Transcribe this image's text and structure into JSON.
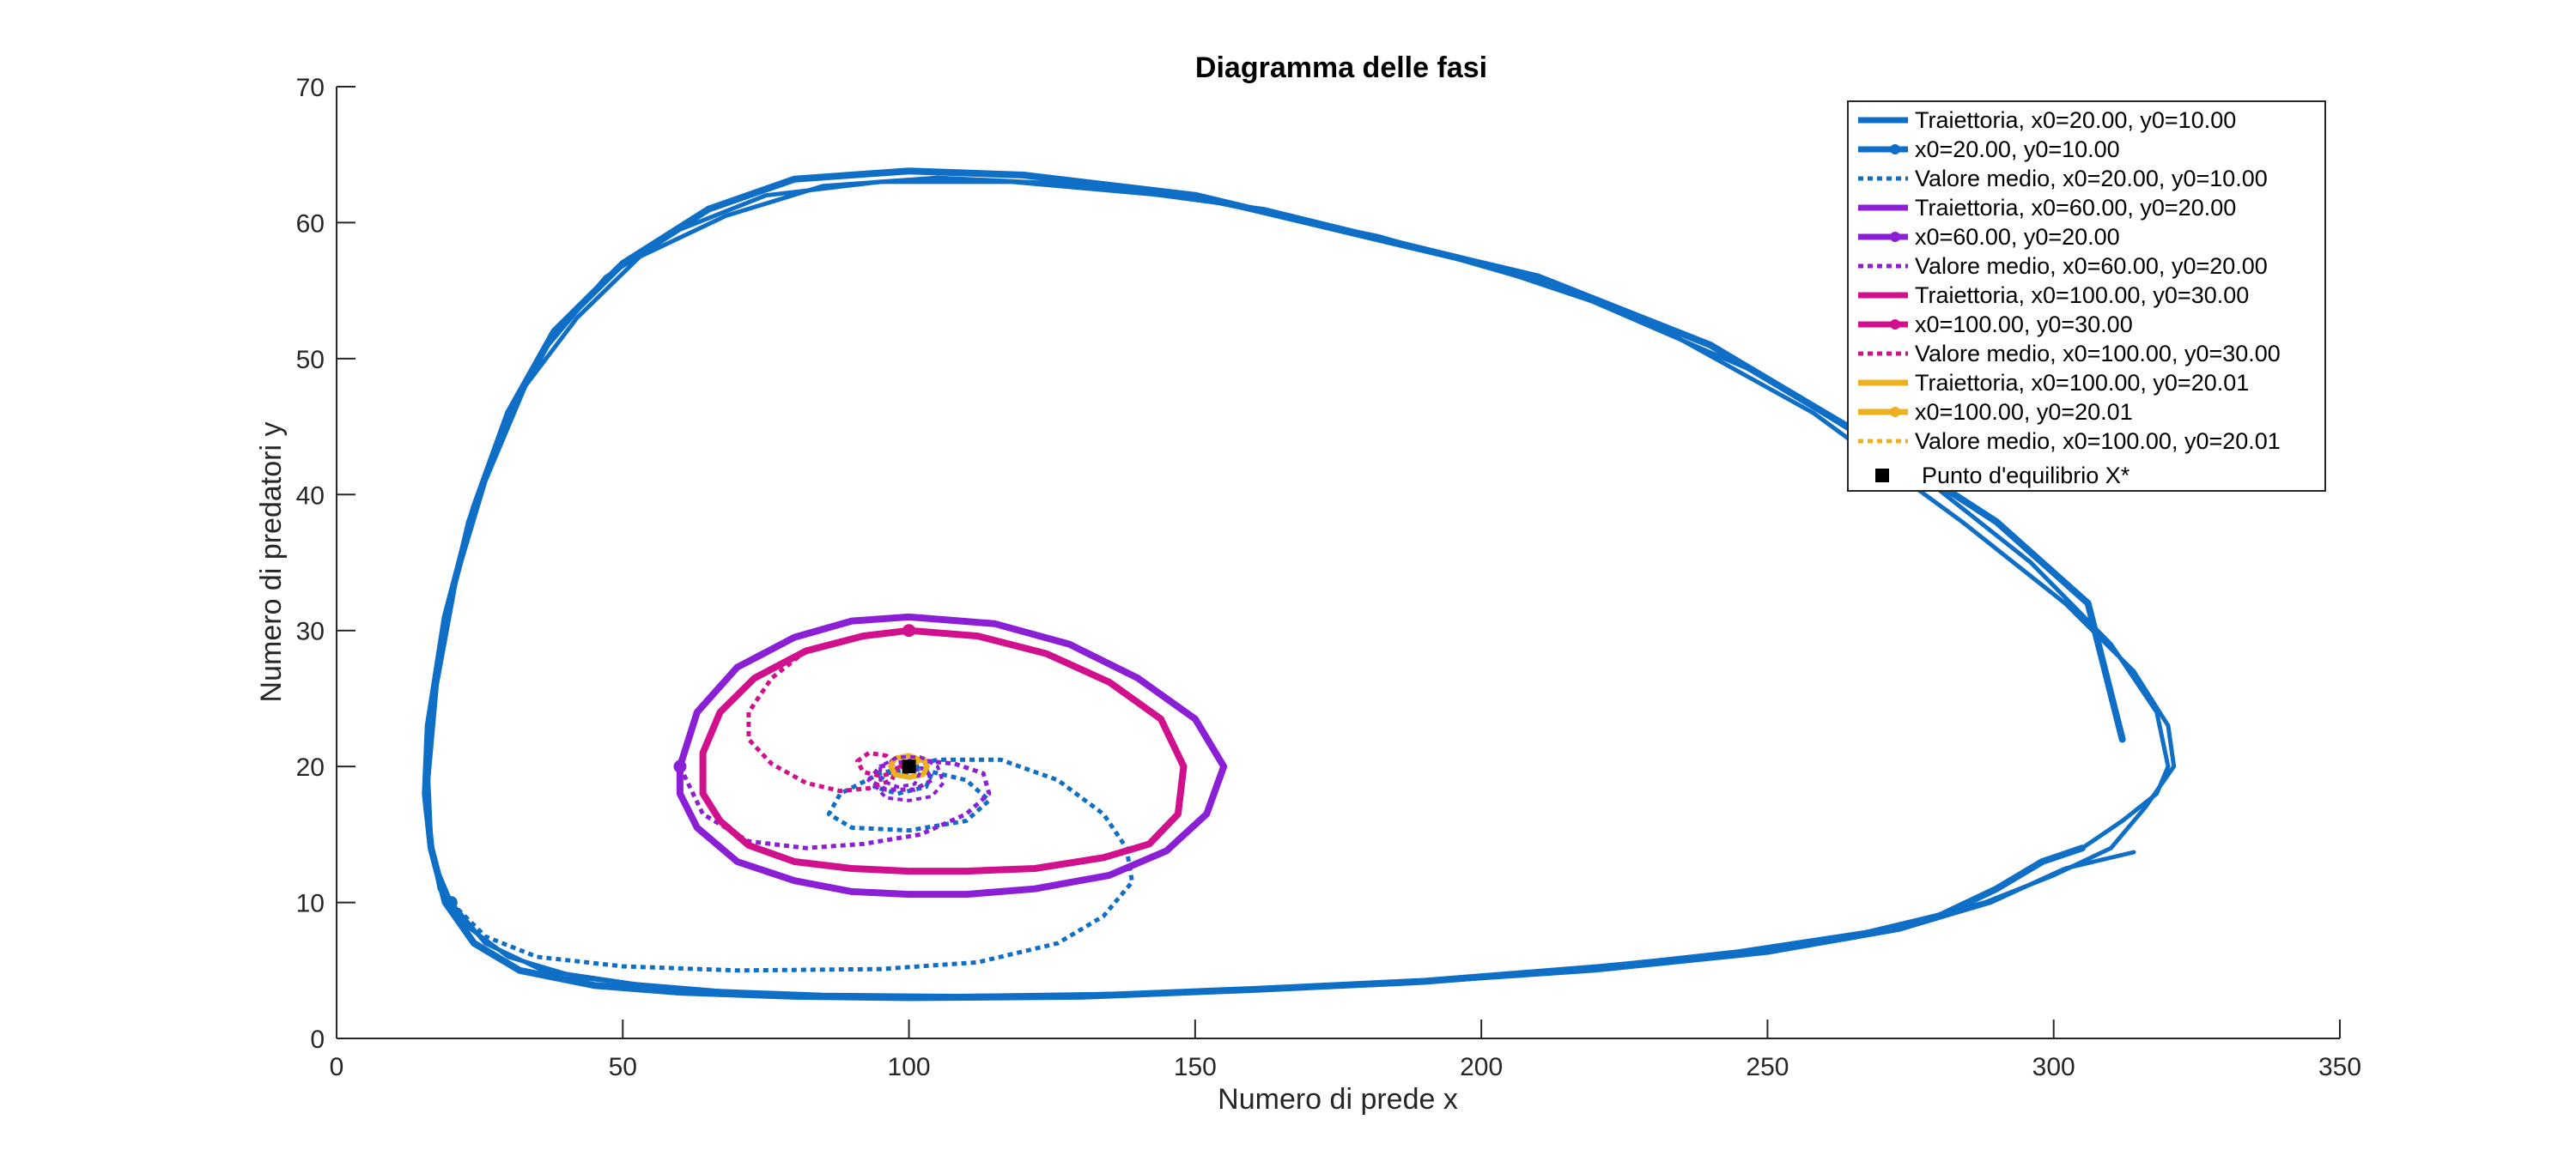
{
  "chart_data": {
    "type": "line",
    "title": "Diagramma delle fasi",
    "xlabel": "Numero di prede x",
    "ylabel": "Numero di predatori y",
    "xlim": [
      0,
      350
    ],
    "ylim": [
      0,
      70
    ],
    "xticks": [
      "0",
      "50",
      "100",
      "150",
      "200",
      "250",
      "300",
      "350"
    ],
    "yticks": [
      "0",
      "10",
      "20",
      "30",
      "40",
      "50",
      "60",
      "70"
    ],
    "grid": false,
    "legend_position": "top-right",
    "colors": {
      "blue": "#0072BD",
      "purple": "#7E2F8E",
      "violet": "#8B1FD6",
      "magenta": "#D0108C",
      "orange": "#EDB120",
      "black": "#000000"
    },
    "legend": [
      {
        "label": "Traiettoria, x0=20.00, y0=10.00",
        "color": "#0F6FC6",
        "style": "solid"
      },
      {
        "label": "x0=20.00, y0=10.00",
        "color": "#0F6FC6",
        "style": "marker"
      },
      {
        "label": "Valore medio, x0=20.00, y0=10.00",
        "color": "#0F6FC6",
        "style": "dotted"
      },
      {
        "label": "Traiettoria, x0=60.00, y0=20.00",
        "color": "#8B1FD6",
        "style": "solid"
      },
      {
        "label": "x0=60.00, y0=20.00",
        "color": "#8B1FD6",
        "style": "marker"
      },
      {
        "label": "Valore medio, x0=60.00, y0=20.00",
        "color": "#8B1FD6",
        "style": "dotted"
      },
      {
        "label": "Traiettoria, x0=100.00, y0=30.00",
        "color": "#D0108C",
        "style": "solid"
      },
      {
        "label": "x0=100.00, y0=30.00",
        "color": "#D0108C",
        "style": "marker"
      },
      {
        "label": "Valore medio, x0=100.00, y0=30.00",
        "color": "#D0108C",
        "style": "dotted"
      },
      {
        "label": "Traiettoria, x0=100.00, y0=20.01",
        "color": "#EDB120",
        "style": "solid"
      },
      {
        "label": "x0=100.00, y0=20.01",
        "color": "#EDB120",
        "style": "marker"
      },
      {
        "label": "Valore medio, x0=100.00, y0=20.01",
        "color": "#EDB120",
        "style": "dotted"
      },
      {
        "label": "Punto  d'equilibrio  X*",
        "color": "#000000",
        "style": "square"
      }
    ],
    "series": [
      {
        "kind": "trajectory",
        "color": "#0F6FC6",
        "width": 8,
        "points": [
          [
            312,
            22
          ],
          [
            306,
            32
          ],
          [
            290,
            38
          ],
          [
            268,
            44
          ],
          [
            240,
            51
          ],
          [
            210,
            56
          ],
          [
            180,
            59
          ],
          [
            150,
            62
          ],
          [
            120,
            63.5
          ],
          [
            100,
            63.8
          ],
          [
            80,
            63.2
          ],
          [
            65,
            61
          ],
          [
            50,
            57
          ],
          [
            38,
            52
          ],
          [
            30,
            46
          ],
          [
            24,
            39
          ],
          [
            19,
            31
          ],
          [
            16,
            23
          ],
          [
            15.5,
            18
          ],
          [
            16.5,
            14
          ],
          [
            19,
            10
          ],
          [
            24,
            7
          ],
          [
            32,
            5
          ],
          [
            45,
            3.9
          ],
          [
            60,
            3.4
          ],
          [
            80,
            3.1
          ],
          [
            100,
            3
          ],
          [
            130,
            3.1
          ],
          [
            160,
            3.6
          ],
          [
            190,
            4.2
          ],
          [
            220,
            5.2
          ],
          [
            245,
            6.2
          ],
          [
            265,
            7.5
          ],
          [
            280,
            9
          ],
          [
            290,
            11
          ],
          [
            298,
            13
          ],
          [
            305,
            14
          ]
        ]
      },
      {
        "kind": "trajectory",
        "color": "#0F6FC6",
        "width": 5,
        "points": [
          [
            305,
            14
          ],
          [
            312,
            16
          ],
          [
            318,
            18
          ],
          [
            320,
            20
          ],
          [
            318,
            24
          ],
          [
            310,
            29
          ],
          [
            296,
            35
          ],
          [
            275,
            42
          ],
          [
            248,
            49
          ],
          [
            215,
            55
          ],
          [
            182,
            59
          ],
          [
            150,
            61.8
          ],
          [
            118,
            63
          ],
          [
            95,
            63
          ],
          [
            75,
            62
          ],
          [
            60,
            59.5
          ],
          [
            47,
            56
          ],
          [
            37,
            51
          ],
          [
            29,
            45
          ],
          [
            23,
            38
          ],
          [
            18.5,
            30
          ],
          [
            16,
            22
          ],
          [
            15.5,
            17
          ],
          [
            17,
            13
          ],
          [
            20,
            10
          ],
          [
            26,
            7
          ],
          [
            36,
            5
          ],
          [
            52,
            4
          ],
          [
            75,
            3.2
          ],
          [
            105,
            3.1
          ],
          [
            140,
            3.3
          ],
          [
            180,
            4
          ],
          [
            215,
            5
          ],
          [
            245,
            6.4
          ],
          [
            270,
            8
          ],
          [
            288,
            10
          ],
          [
            300,
            12
          ],
          [
            310,
            14
          ]
        ]
      },
      {
        "kind": "trajectory",
        "color": "#0F6FC6",
        "width": 5,
        "points": [
          [
            310,
            14
          ],
          [
            316,
            17
          ],
          [
            321,
            20
          ],
          [
            320,
            23
          ],
          [
            314,
            27
          ],
          [
            302,
            32
          ],
          [
            284,
            38
          ],
          [
            258,
            46
          ],
          [
            228,
            53
          ],
          [
            196,
            57.5
          ],
          [
            162,
            61
          ],
          [
            130,
            62.8
          ],
          [
            105,
            63.3
          ],
          [
            85,
            62.7
          ],
          [
            68,
            60.5
          ],
          [
            53,
            57.5
          ],
          [
            42,
            53
          ],
          [
            33,
            48
          ],
          [
            26,
            41
          ],
          [
            21,
            34
          ],
          [
            17.5,
            26
          ],
          [
            16,
            19
          ],
          [
            16.5,
            14.5
          ],
          [
            18,
            11
          ],
          [
            22,
            8.5
          ],
          [
            30,
            6
          ],
          [
            42,
            4.5
          ],
          [
            60,
            3.6
          ],
          [
            85,
            3.2
          ],
          [
            115,
            3.1
          ],
          [
            150,
            3.4
          ],
          [
            185,
            4
          ],
          [
            220,
            5
          ],
          [
            250,
            6.3
          ],
          [
            273,
            8
          ],
          [
            289,
            10
          ],
          [
            302,
            12.5
          ],
          [
            314,
            13.7
          ]
        ]
      },
      {
        "kind": "mean",
        "color": "#0F6FC6",
        "width": 5,
        "points": [
          [
            20,
            10
          ],
          [
            26,
            7.5
          ],
          [
            35,
            6
          ],
          [
            50,
            5.3
          ],
          [
            70,
            5
          ],
          [
            95,
            5.1
          ],
          [
            112,
            5.6
          ],
          [
            126,
            7
          ],
          [
            134,
            9
          ],
          [
            139,
            11.5
          ],
          [
            138,
            14
          ],
          [
            134,
            16.5
          ],
          [
            126,
            19
          ],
          [
            116,
            20.5
          ],
          [
            105,
            20.5
          ],
          [
            95,
            19.5
          ],
          [
            88,
            18
          ],
          [
            86,
            16.5
          ],
          [
            90,
            15.5
          ],
          [
            100,
            15.3
          ],
          [
            110,
            16
          ],
          [
            114,
            17.5
          ],
          [
            110,
            19
          ],
          [
            102,
            19.8
          ],
          [
            96,
            19.5
          ],
          [
            94,
            18.5
          ],
          [
            98,
            18
          ],
          [
            103,
            18.5
          ],
          [
            104,
            19.5
          ],
          [
            101,
            20
          ],
          [
            99,
            19.6
          ],
          [
            100,
            19.2
          ]
        ]
      },
      {
        "kind": "trajectory",
        "color": "#8B1FD6",
        "width": 8,
        "points": [
          [
            100,
            31
          ],
          [
            115,
            30.5
          ],
          [
            128,
            29
          ],
          [
            140,
            26.5
          ],
          [
            150,
            23.5
          ],
          [
            155,
            20
          ],
          [
            152,
            16.5
          ],
          [
            145,
            13.8
          ],
          [
            135,
            12
          ],
          [
            122,
            11
          ],
          [
            110,
            10.6
          ],
          [
            100,
            10.6
          ],
          [
            90,
            10.8
          ],
          [
            80,
            11.6
          ],
          [
            70,
            13
          ],
          [
            63,
            15.5
          ],
          [
            60,
            18
          ],
          [
            60,
            20
          ],
          [
            63,
            24
          ],
          [
            70,
            27.3
          ],
          [
            80,
            29.5
          ],
          [
            90,
            30.7
          ],
          [
            100,
            31
          ]
        ]
      },
      {
        "kind": "mean",
        "color": "#8B1FD6",
        "width": 5,
        "points": [
          [
            60,
            20
          ],
          [
            64,
            16.5
          ],
          [
            72,
            14.5
          ],
          [
            82,
            14
          ],
          [
            92,
            14.3
          ],
          [
            102,
            15
          ],
          [
            110,
            16.5
          ],
          [
            114,
            18
          ],
          [
            113,
            19.5
          ],
          [
            108,
            20.2
          ],
          [
            101,
            20.5
          ],
          [
            95,
            20
          ],
          [
            93,
            19
          ],
          [
            96,
            18.3
          ],
          [
            101,
            18.3
          ],
          [
            104,
            19
          ],
          [
            103,
            19.8
          ],
          [
            100,
            20
          ]
        ]
      },
      {
        "kind": "trajectory",
        "color": "#D0108C",
        "width": 8,
        "points": [
          [
            100,
            30
          ],
          [
            112,
            29.6
          ],
          [
            124,
            28.3
          ],
          [
            135,
            26.2
          ],
          [
            144,
            23.5
          ],
          [
            148,
            20
          ],
          [
            147,
            16.5
          ],
          [
            142,
            14.3
          ],
          [
            134,
            13.3
          ],
          [
            122,
            12.5
          ],
          [
            110,
            12.3
          ],
          [
            100,
            12.3
          ],
          [
            90,
            12.5
          ],
          [
            80,
            13
          ],
          [
            72,
            14.2
          ],
          [
            67,
            16
          ],
          [
            64,
            18
          ],
          [
            64,
            21
          ],
          [
            67,
            24
          ],
          [
            73,
            26.5
          ],
          [
            82,
            28.5
          ],
          [
            92,
            29.6
          ],
          [
            100,
            30
          ]
        ]
      },
      {
        "kind": "mean",
        "color": "#D0108C",
        "width": 5,
        "points": [
          [
            82,
            28.5
          ],
          [
            76,
            26.5
          ],
          [
            72,
            24
          ],
          [
            72,
            22
          ],
          [
            76,
            20.2
          ],
          [
            82,
            18.8
          ],
          [
            88,
            18.2
          ],
          [
            93,
            18.4
          ],
          [
            97,
            19
          ],
          [
            98,
            20
          ],
          [
            96,
            20.8
          ],
          [
            93,
            21
          ],
          [
            91,
            20.4
          ],
          [
            92,
            19.6
          ],
          [
            95,
            19.3
          ],
          [
            98,
            19.6
          ],
          [
            99,
            20.2
          ],
          [
            100,
            20
          ]
        ]
      },
      {
        "kind": "trajectory",
        "color": "#EDB120",
        "width": 6,
        "points": [
          [
            100,
            20.01
          ],
          [
            102.5,
            20.6
          ],
          [
            103.2,
            20
          ],
          [
            102.5,
            19.4
          ],
          [
            100,
            19.2
          ],
          [
            97.6,
            19.4
          ],
          [
            96.8,
            20
          ],
          [
            97.6,
            20.6
          ],
          [
            100,
            20.8
          ],
          [
            102,
            20.5
          ]
        ]
      },
      {
        "kind": "mean",
        "color": "#8B1FD6",
        "width": 4,
        "points": [
          [
            94,
            18.6
          ],
          [
            96,
            17.7
          ],
          [
            100,
            17.5
          ],
          [
            104,
            17.8
          ],
          [
            106,
            18.8
          ],
          [
            105,
            20
          ],
          [
            102,
            20.7
          ],
          [
            98,
            20.7
          ],
          [
            95,
            20
          ],
          [
            95,
            19
          ],
          [
            98,
            18.5
          ],
          [
            101,
            18.7
          ],
          [
            102,
            19.6
          ],
          [
            100,
            20
          ]
        ]
      }
    ],
    "start_points": [
      {
        "x": 20,
        "y": 10,
        "color": "#0F6FC6"
      },
      {
        "x": 60,
        "y": 20,
        "color": "#8B1FD6"
      },
      {
        "x": 100,
        "y": 30,
        "color": "#D0108C"
      },
      {
        "x": 100,
        "y": 20.01,
        "color": "#EDB120"
      }
    ],
    "equilibrium": {
      "x": 100,
      "y": 20,
      "color": "#000000"
    }
  }
}
